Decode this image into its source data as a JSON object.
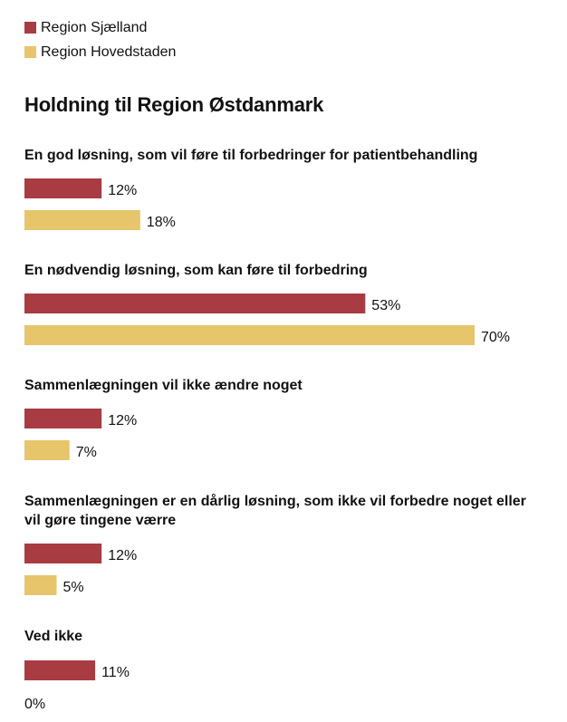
{
  "chart_data": {
    "type": "bar",
    "orientation": "horizontal",
    "title": "Holdning til Region Østdanmark",
    "categories": [
      "En god løsning, som vil føre til forbedringer for patientbehandling",
      "En nødvendig løsning, som kan føre til forbedring",
      "Sammenlægningen vil ikke ændre noget",
      "Sammenlægningen er en dårlig løsning, som ikke vil forbedre noget eller vil gøre tingene værre",
      "Ved ikke"
    ],
    "series": [
      {
        "name": "Region Sjælland",
        "color": "#a83c42",
        "values": [
          12,
          53,
          12,
          12,
          11
        ]
      },
      {
        "name": "Region Hovedstaden",
        "color": "#e6c56b",
        "values": [
          18,
          70,
          7,
          5,
          0
        ]
      }
    ],
    "value_suffix": "%",
    "xlim": [
      0,
      70
    ],
    "grid": false,
    "legend": "top-left"
  }
}
